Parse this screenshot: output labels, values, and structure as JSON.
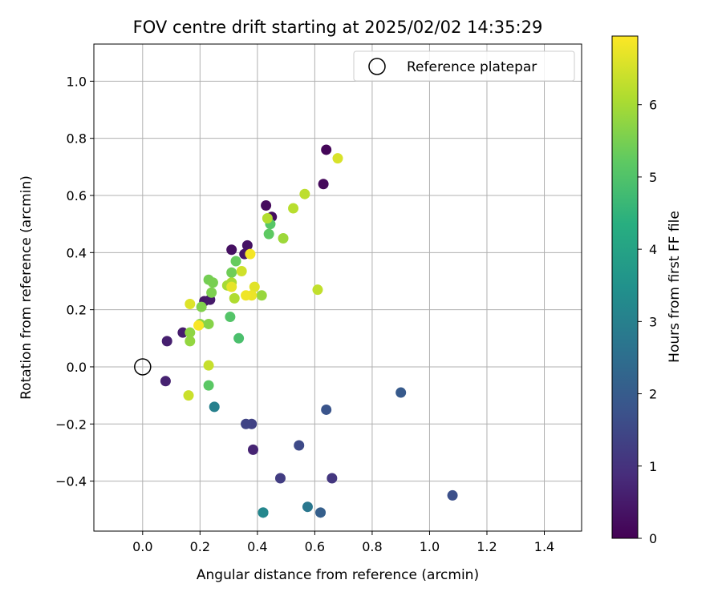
{
  "chart_data": {
    "type": "scatter",
    "title": "FOV centre drift starting at 2025/02/02 14:35:29",
    "xlabel": "Angular distance from reference (arcmin)",
    "ylabel": "Rotation from reference (arcmin)",
    "xlim": [
      -0.17,
      1.53
    ],
    "ylim": [
      -0.575,
      1.13
    ],
    "xticks": [
      0.0,
      0.2,
      0.4,
      0.6,
      0.8,
      1.0,
      1.2,
      1.4
    ],
    "yticks": [
      -0.4,
      -0.2,
      0.0,
      0.2,
      0.4,
      0.6,
      0.8,
      1.0
    ],
    "grid": true,
    "legend": {
      "position": "top-right",
      "entries": [
        "Reference platepar"
      ]
    },
    "reference_point": {
      "x": 0.0,
      "y": 0.0,
      "label": "Reference platepar"
    },
    "colorbar": {
      "label": "Hours from first FF file",
      "colormap": "viridis",
      "range": [
        0,
        6.95
      ],
      "ticks": [
        0,
        1,
        2,
        3,
        4,
        5,
        6
      ]
    },
    "series": [
      {
        "points": [
          {
            "x": 0.64,
            "y": 0.76,
            "hours": 0.1
          },
          {
            "x": 0.63,
            "y": 0.64,
            "hours": 0.15
          },
          {
            "x": 0.43,
            "y": 0.565,
            "hours": 0.2
          },
          {
            "x": 0.45,
            "y": 0.525,
            "hours": 0.25
          },
          {
            "x": 0.31,
            "y": 0.41,
            "hours": 0.3
          },
          {
            "x": 0.365,
            "y": 0.425,
            "hours": 0.35
          },
          {
            "x": 0.355,
            "y": 0.395,
            "hours": 0.4
          },
          {
            "x": 0.215,
            "y": 0.23,
            "hours": 0.45
          },
          {
            "x": 0.235,
            "y": 0.235,
            "hours": 0.5
          },
          {
            "x": 0.14,
            "y": 0.12,
            "hours": 0.55
          },
          {
            "x": 0.085,
            "y": 0.09,
            "hours": 0.6
          },
          {
            "x": 0.08,
            "y": -0.05,
            "hours": 0.65
          },
          {
            "x": 0.385,
            "y": -0.29,
            "hours": 0.7
          },
          {
            "x": 0.66,
            "y": -0.39,
            "hours": 1.1
          },
          {
            "x": 0.48,
            "y": -0.39,
            "hours": 1.25
          },
          {
            "x": 0.38,
            "y": -0.2,
            "hours": 1.35
          },
          {
            "x": 0.36,
            "y": -0.2,
            "hours": 1.4
          },
          {
            "x": 0.545,
            "y": -0.275,
            "hours": 1.55
          },
          {
            "x": 1.08,
            "y": -0.45,
            "hours": 1.7
          },
          {
            "x": 0.64,
            "y": -0.15,
            "hours": 1.8
          },
          {
            "x": 0.9,
            "y": -0.09,
            "hours": 1.95
          },
          {
            "x": 0.62,
            "y": -0.51,
            "hours": 2.1
          },
          {
            "x": 0.42,
            "y": -0.51,
            "hours": 2.5
          },
          {
            "x": 0.575,
            "y": -0.49,
            "hours": 2.75
          },
          {
            "x": 0.25,
            "y": -0.14,
            "hours": 3.0
          },
          {
            "x": 0.42,
            "y": -0.51,
            "hours": 3.2
          },
          {
            "x": 0.335,
            "y": 0.1,
            "hours": 4.9
          },
          {
            "x": 0.305,
            "y": 0.175,
            "hours": 5.05
          },
          {
            "x": 0.23,
            "y": -0.065,
            "hours": 5.15
          },
          {
            "x": 0.445,
            "y": 0.5,
            "hours": 5.1
          },
          {
            "x": 0.44,
            "y": 0.465,
            "hours": 5.2
          },
          {
            "x": 0.325,
            "y": 0.37,
            "hours": 5.3
          },
          {
            "x": 0.31,
            "y": 0.33,
            "hours": 5.4
          },
          {
            "x": 0.23,
            "y": 0.305,
            "hours": 5.45
          },
          {
            "x": 0.245,
            "y": 0.295,
            "hours": 5.5
          },
          {
            "x": 0.24,
            "y": 0.26,
            "hours": 5.55
          },
          {
            "x": 0.205,
            "y": 0.21,
            "hours": 5.6
          },
          {
            "x": 0.23,
            "y": 0.15,
            "hours": 5.65
          },
          {
            "x": 0.2,
            "y": 0.15,
            "hours": 5.7
          },
          {
            "x": 0.165,
            "y": 0.12,
            "hours": 5.75
          },
          {
            "x": 0.165,
            "y": 0.09,
            "hours": 5.8
          },
          {
            "x": 0.415,
            "y": 0.25,
            "hours": 5.85
          },
          {
            "x": 0.49,
            "y": 0.45,
            "hours": 5.9
          },
          {
            "x": 0.295,
            "y": 0.285,
            "hours": 6.0
          },
          {
            "x": 0.31,
            "y": 0.295,
            "hours": 6.05
          },
          {
            "x": 0.32,
            "y": 0.24,
            "hours": 6.1
          },
          {
            "x": 0.435,
            "y": 0.52,
            "hours": 6.15
          },
          {
            "x": 0.525,
            "y": 0.555,
            "hours": 6.2
          },
          {
            "x": 0.565,
            "y": 0.605,
            "hours": 6.25
          },
          {
            "x": 0.61,
            "y": 0.27,
            "hours": 6.3
          },
          {
            "x": 0.23,
            "y": 0.005,
            "hours": 6.35
          },
          {
            "x": 0.16,
            "y": -0.1,
            "hours": 6.4
          },
          {
            "x": 0.345,
            "y": 0.335,
            "hours": 6.45
          },
          {
            "x": 0.68,
            "y": 0.73,
            "hours": 6.55
          },
          {
            "x": 0.165,
            "y": 0.22,
            "hours": 6.6
          },
          {
            "x": 0.39,
            "y": 0.28,
            "hours": 6.65
          },
          {
            "x": 0.31,
            "y": 0.28,
            "hours": 6.7
          },
          {
            "x": 0.38,
            "y": 0.25,
            "hours": 6.75
          },
          {
            "x": 0.36,
            "y": 0.25,
            "hours": 6.8
          },
          {
            "x": 0.375,
            "y": 0.395,
            "hours": 6.85
          },
          {
            "x": 0.195,
            "y": 0.145,
            "hours": 6.9
          }
        ]
      }
    ]
  }
}
